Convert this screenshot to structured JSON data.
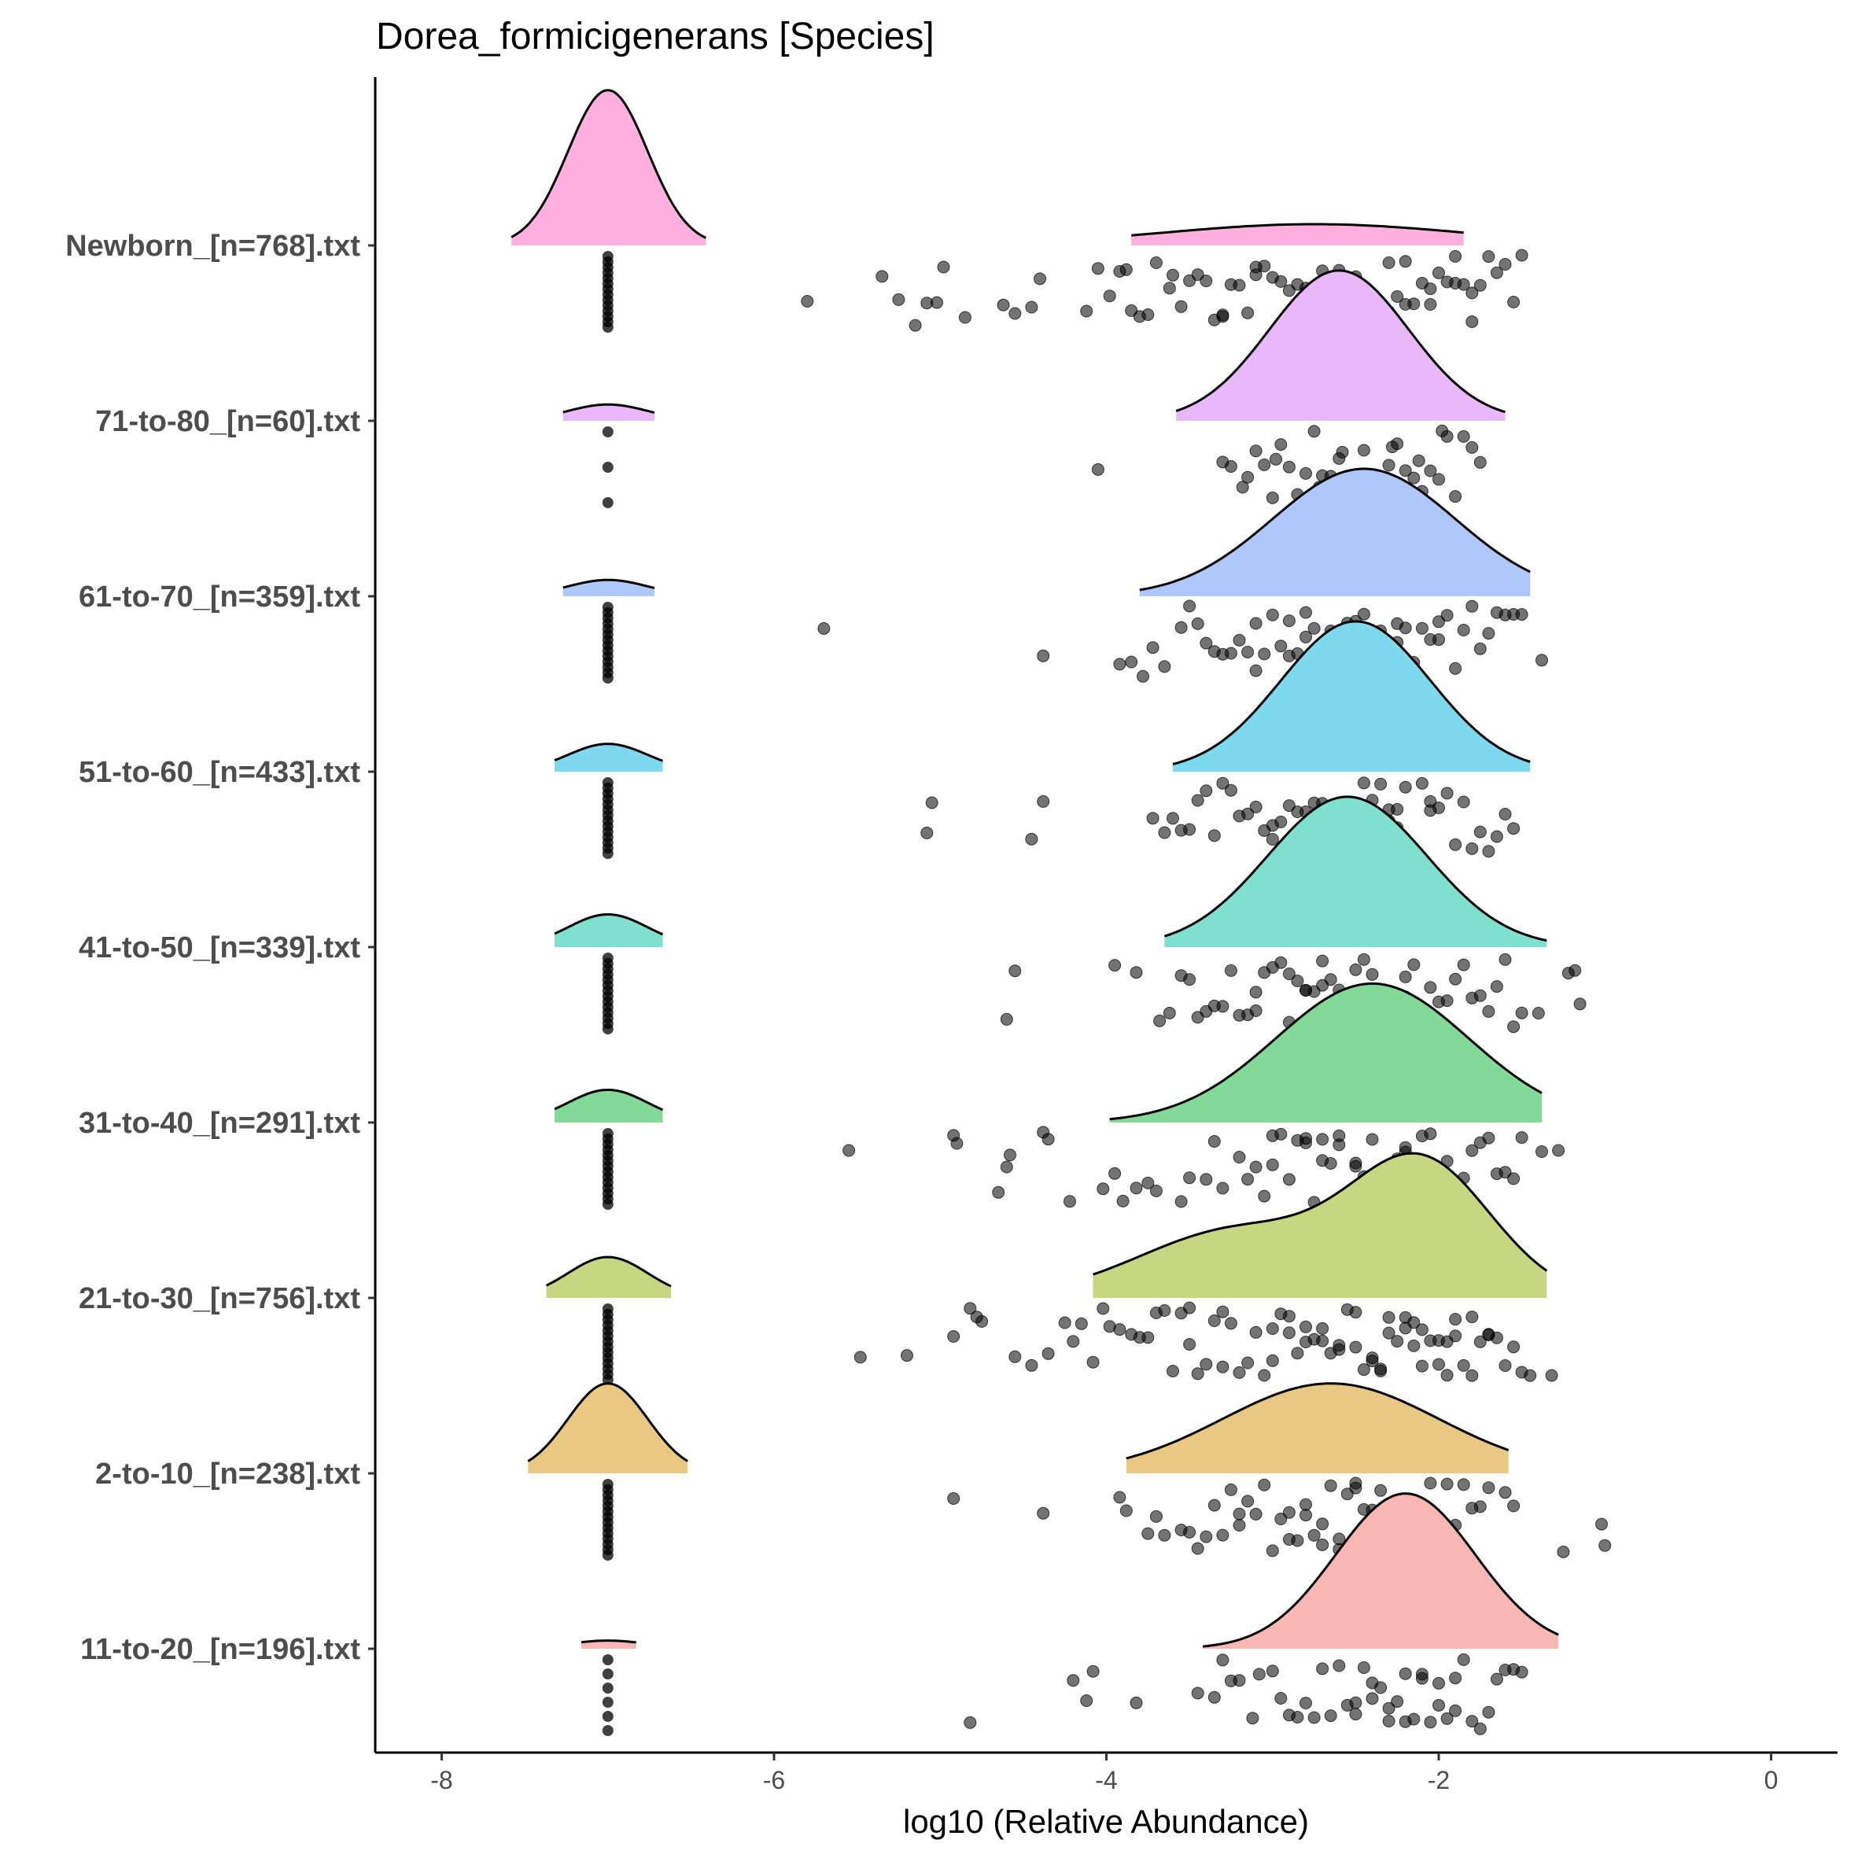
{
  "chart_data": {
    "type": "raincloud",
    "title": "Dorea_formicigenerans [Species]",
    "xlabel": "log10 (Relative Abundance)",
    "ylabel": "",
    "xlim": [
      -8.4,
      0.4
    ],
    "xticks": [
      -8,
      -6,
      -4,
      -2,
      0
    ],
    "xtick_labels": [
      "-8",
      "-6",
      "-4",
      "-2",
      "0"
    ],
    "grid": false,
    "legend": "none",
    "zero_value": -7,
    "groups": [
      {
        "label": "Newborn_[n=768].txt",
        "color": "#FFB0DE",
        "zero_peak": {
          "x": -7.0,
          "sd": 0.24,
          "height": 0.95,
          "range": [
            -7.58,
            -6.41
          ]
        },
        "main_peaks": [
          {
            "x": -2.75,
            "sd": 0.9,
            "height": 0.13
          }
        ],
        "main_range": [
          -3.85,
          -1.85
        ],
        "points": [
          -5.8,
          -5.35,
          -5.25,
          -5.15,
          -5.08,
          -5.02,
          -4.98,
          -4.85,
          -4.62,
          -4.55,
          -4.45,
          -4.4,
          -4.12,
          -4.05,
          -3.98,
          -3.92,
          -3.88,
          -3.85,
          -3.8,
          -3.75,
          -3.7,
          -3.62,
          -3.55,
          -3.5,
          -3.45,
          -3.4,
          -3.35,
          -3.3,
          -3.25,
          -3.2,
          -3.15,
          -3.1,
          -3.05,
          -3.0,
          -2.95,
          -2.9,
          -2.85,
          -2.8,
          -2.75,
          -2.7,
          -2.65,
          -2.6,
          -2.55,
          -2.5,
          -2.45,
          -2.4,
          -2.35,
          -2.3,
          -2.25,
          -2.2,
          -2.15,
          -2.1,
          -2.05,
          -2.0,
          -1.95,
          -1.9,
          -1.85,
          -1.8,
          -1.75,
          -1.7,
          -1.65,
          -1.6,
          -1.55,
          -1.5,
          -3.6,
          -3.1,
          -2.85,
          -2.6,
          -2.3,
          -2.05,
          -1.8,
          -3.3,
          -2.5,
          -2.2,
          -1.9
        ]
      },
      {
        "label": "71-to-80_[n=60].txt",
        "color": "#E9B8FB",
        "zero_peak": {
          "x": -7.0,
          "sd": 0.24,
          "height": 0.1,
          "range": [
            -7.27,
            -6.72
          ]
        },
        "main_peaks": [
          {
            "x": -2.6,
            "sd": 0.42,
            "height": 0.92
          }
        ],
        "main_range": [
          -3.58,
          -1.6
        ],
        "points": [
          -4.05,
          -3.3,
          -3.25,
          -3.15,
          -3.1,
          -3.05,
          -3.0,
          -2.95,
          -2.9,
          -2.85,
          -2.8,
          -2.75,
          -2.7,
          -2.65,
          -2.6,
          -2.55,
          -2.5,
          -2.45,
          -2.4,
          -2.35,
          -2.3,
          -2.25,
          -2.2,
          -2.15,
          -2.1,
          -2.05,
          -2.0,
          -1.95,
          -1.9,
          -1.85,
          -1.8,
          -1.75,
          -2.72,
          -2.58,
          -2.42,
          -2.28,
          -3.18,
          -2.98,
          -2.12,
          -1.98
        ]
      },
      {
        "label": "61-to-70_[n=359].txt",
        "color": "#AFC8FA",
        "zero_peak": {
          "x": -7.0,
          "sd": 0.24,
          "height": 0.1,
          "range": [
            -7.27,
            -6.72
          ]
        },
        "main_peaks": [
          {
            "x": -2.45,
            "sd": 0.55,
            "height": 0.78
          }
        ],
        "main_range": [
          -3.8,
          -1.45
        ],
        "points": [
          -5.7,
          -4.38,
          -3.92,
          -3.85,
          -3.78,
          -3.72,
          -3.65,
          -3.55,
          -3.5,
          -3.45,
          -3.4,
          -3.35,
          -3.3,
          -3.25,
          -3.2,
          -3.15,
          -3.1,
          -3.05,
          -3.0,
          -2.95,
          -2.9,
          -2.85,
          -2.8,
          -2.75,
          -2.7,
          -2.65,
          -2.6,
          -2.55,
          -2.5,
          -2.45,
          -2.4,
          -2.35,
          -2.3,
          -2.25,
          -2.2,
          -2.15,
          -2.1,
          -2.05,
          -2.0,
          -1.95,
          -1.9,
          -1.85,
          -1.8,
          -1.75,
          -1.7,
          -1.65,
          -1.6,
          -1.55,
          -1.5,
          -1.38,
          -2.9,
          -2.7,
          -2.6,
          -2.5,
          -2.4,
          -2.3,
          -2.2,
          -2.8,
          -2.55,
          -2.35,
          -2.15,
          -2.0,
          -3.1,
          -2.65,
          -2.45,
          -2.25
        ]
      },
      {
        "label": "51-to-60_[n=433].txt",
        "color": "#7FD9EE",
        "zero_peak": {
          "x": -7.0,
          "sd": 0.24,
          "height": 0.17,
          "range": [
            -7.32,
            -6.67
          ]
        },
        "main_peaks": [
          {
            "x": -2.5,
            "sd": 0.45,
            "height": 0.92
          }
        ],
        "main_range": [
          -3.6,
          -1.45
        ],
        "points": [
          -5.08,
          -5.05,
          -4.45,
          -4.38,
          -3.72,
          -3.65,
          -3.6,
          -3.55,
          -3.5,
          -3.45,
          -3.4,
          -3.35,
          -3.3,
          -3.25,
          -3.2,
          -3.15,
          -3.1,
          -3.05,
          -3.0,
          -2.95,
          -2.9,
          -2.85,
          -2.8,
          -2.75,
          -2.7,
          -2.65,
          -2.6,
          -2.55,
          -2.5,
          -2.45,
          -2.4,
          -2.35,
          -2.3,
          -2.25,
          -2.2,
          -2.15,
          -2.1,
          -2.05,
          -2.0,
          -1.95,
          -1.9,
          -1.85,
          -1.8,
          -1.75,
          -1.7,
          -1.65,
          -1.6,
          -1.55,
          -2.9,
          -2.75,
          -2.6,
          -2.5,
          -2.4,
          -2.3,
          -2.2,
          -2.85,
          -2.65,
          -2.45,
          -2.25,
          -2.05,
          -3.0,
          -2.55,
          -2.35,
          -2.7
        ]
      },
      {
        "label": "41-to-50_[n=339].txt",
        "color": "#7FE0CF",
        "zero_peak": {
          "x": -7.0,
          "sd": 0.24,
          "height": 0.2,
          "range": [
            -7.32,
            -6.67
          ]
        },
        "main_peaks": [
          {
            "x": -2.55,
            "sd": 0.48,
            "height": 0.92
          }
        ],
        "main_range": [
          -3.65,
          -1.35
        ],
        "points": [
          -4.6,
          -4.55,
          -3.95,
          -3.82,
          -3.68,
          -3.62,
          -3.55,
          -3.5,
          -3.45,
          -3.4,
          -3.35,
          -3.3,
          -3.25,
          -3.2,
          -3.15,
          -3.1,
          -3.05,
          -3.0,
          -2.95,
          -2.9,
          -2.85,
          -2.8,
          -2.75,
          -2.7,
          -2.65,
          -2.6,
          -2.55,
          -2.5,
          -2.45,
          -2.4,
          -2.35,
          -2.3,
          -2.25,
          -2.2,
          -2.15,
          -2.1,
          -2.05,
          -2.0,
          -1.95,
          -1.9,
          -1.85,
          -1.8,
          -1.75,
          -1.7,
          -1.65,
          -1.6,
          -1.55,
          -1.5,
          -1.4,
          -1.22,
          -1.18,
          -1.15,
          -2.9,
          -2.7,
          -2.6,
          -2.5,
          -2.4,
          -2.8,
          -2.55,
          -2.35,
          -3.1,
          -2.65,
          -2.45,
          -2.2
        ]
      },
      {
        "label": "31-to-40_[n=291].txt",
        "color": "#83DA98",
        "zero_peak": {
          "x": -7.0,
          "sd": 0.24,
          "height": 0.2,
          "range": [
            -7.32,
            -6.67
          ]
        },
        "main_peaks": [
          {
            "x": -2.4,
            "sd": 0.58,
            "height": 0.85
          }
        ],
        "main_range": [
          -3.98,
          -1.38
        ],
        "points": [
          -5.55,
          -4.92,
          -4.9,
          -4.65,
          -4.6,
          -4.58,
          -4.38,
          -4.35,
          -4.22,
          -4.02,
          -3.95,
          -3.9,
          -3.82,
          -3.75,
          -3.7,
          -3.55,
          -3.5,
          -3.4,
          -3.35,
          -3.3,
          -3.2,
          -3.15,
          -3.1,
          -3.05,
          -3.0,
          -2.95,
          -2.9,
          -2.85,
          -2.8,
          -2.75,
          -2.7,
          -2.65,
          -2.6,
          -2.55,
          -2.5,
          -2.45,
          -2.4,
          -2.35,
          -2.3,
          -2.25,
          -2.2,
          -2.15,
          -2.1,
          -2.05,
          -2.0,
          -1.95,
          -1.9,
          -1.85,
          -1.8,
          -1.75,
          -1.7,
          -1.65,
          -1.6,
          -1.55,
          -1.5,
          -1.38,
          -1.28,
          -2.8,
          -2.6,
          -2.4,
          -2.2,
          -2.0,
          -2.7,
          -2.5,
          -2.3,
          -3.0
        ]
      },
      {
        "label": "21-to-30_[n=756].txt",
        "color": "#C6D681",
        "zero_peak": {
          "x": -7.0,
          "sd": 0.24,
          "height": 0.25,
          "range": [
            -7.37,
            -6.62
          ]
        },
        "main_peaks": [
          {
            "x": -2.1,
            "sd": 0.42,
            "height": 0.8
          },
          {
            "x": -3.2,
            "sd": 0.6,
            "height": 0.42
          }
        ],
        "main_range": [
          -4.08,
          -1.35
        ],
        "points": [
          -5.48,
          -5.2,
          -4.92,
          -4.82,
          -4.78,
          -4.75,
          -4.55,
          -4.45,
          -4.35,
          -4.25,
          -4.2,
          -4.15,
          -4.08,
          -4.02,
          -3.98,
          -3.92,
          -3.85,
          -3.8,
          -3.75,
          -3.7,
          -3.65,
          -3.6,
          -3.55,
          -3.5,
          -3.45,
          -3.4,
          -3.35,
          -3.3,
          -3.25,
          -3.2,
          -3.15,
          -3.1,
          -3.05,
          -3.0,
          -2.95,
          -2.9,
          -2.85,
          -2.8,
          -2.75,
          -2.7,
          -2.65,
          -2.6,
          -2.55,
          -2.5,
          -2.45,
          -2.4,
          -2.35,
          -2.3,
          -2.25,
          -2.2,
          -2.15,
          -2.1,
          -2.05,
          -2.0,
          -1.95,
          -1.9,
          -1.85,
          -1.8,
          -1.75,
          -1.7,
          -1.65,
          -1.6,
          -1.55,
          -1.5,
          -1.45,
          -1.32,
          -2.9,
          -2.6,
          -2.4,
          -2.2,
          -2.0,
          -1.8,
          -3.3,
          -2.8,
          -2.5,
          -2.3,
          -2.1,
          -1.9,
          -3.5,
          -3.0,
          -2.7,
          -2.35,
          -2.15,
          -1.95,
          -1.7
        ]
      },
      {
        "label": "2-to-10_[n=238].txt",
        "color": "#E8C882",
        "zero_peak": {
          "x": -7.0,
          "sd": 0.24,
          "height": 0.55,
          "range": [
            -7.48,
            -6.52
          ]
        },
        "main_peaks": [
          {
            "x": -2.65,
            "sd": 0.65,
            "height": 0.55
          }
        ],
        "main_range": [
          -3.88,
          -1.58
        ],
        "points": [
          -4.92,
          -4.38,
          -3.92,
          -3.88,
          -3.75,
          -3.7,
          -3.65,
          -3.55,
          -3.5,
          -3.45,
          -3.4,
          -3.35,
          -3.3,
          -3.25,
          -3.2,
          -3.15,
          -3.1,
          -3.05,
          -3.0,
          -2.95,
          -2.9,
          -2.85,
          -2.8,
          -2.75,
          -2.7,
          -2.65,
          -2.6,
          -2.55,
          -2.5,
          -2.45,
          -2.4,
          -2.35,
          -2.3,
          -2.25,
          -2.2,
          -2.15,
          -2.1,
          -2.05,
          -2.0,
          -1.95,
          -1.9,
          -1.85,
          -1.8,
          -1.75,
          -1.7,
          -1.6,
          -1.55,
          -1.25,
          -1.02,
          -1.0,
          -2.9,
          -2.7,
          -2.5,
          -2.3,
          -2.1,
          -3.2,
          -2.8,
          -2.6
        ]
      },
      {
        "label": "11-to-20_[n=196].txt",
        "color": "#F8B7B2",
        "zero_peak": {
          "x": -7.0,
          "sd": 0.24,
          "height": 0.05,
          "range": [
            -7.16,
            -6.83
          ]
        },
        "main_peaks": [
          {
            "x": -2.2,
            "sd": 0.42,
            "height": 0.95
          }
        ],
        "main_range": [
          -3.42,
          -1.28
        ],
        "points": [
          -4.82,
          -4.2,
          -4.12,
          -4.08,
          -3.82,
          -3.45,
          -3.35,
          -3.3,
          -3.25,
          -3.2,
          -3.12,
          -3.08,
          -3.0,
          -2.95,
          -2.9,
          -2.85,
          -2.8,
          -2.75,
          -2.7,
          -2.65,
          -2.6,
          -2.55,
          -2.5,
          -2.45,
          -2.4,
          -2.35,
          -2.3,
          -2.25,
          -2.2,
          -2.15,
          -2.1,
          -2.05,
          -2.0,
          -1.95,
          -1.9,
          -1.85,
          -1.8,
          -1.75,
          -1.7,
          -1.65,
          -1.6,
          -1.55,
          -1.5,
          -2.4,
          -2.2,
          -2.0,
          -2.3,
          -2.1,
          -1.9,
          -2.5
        ]
      }
    ]
  }
}
